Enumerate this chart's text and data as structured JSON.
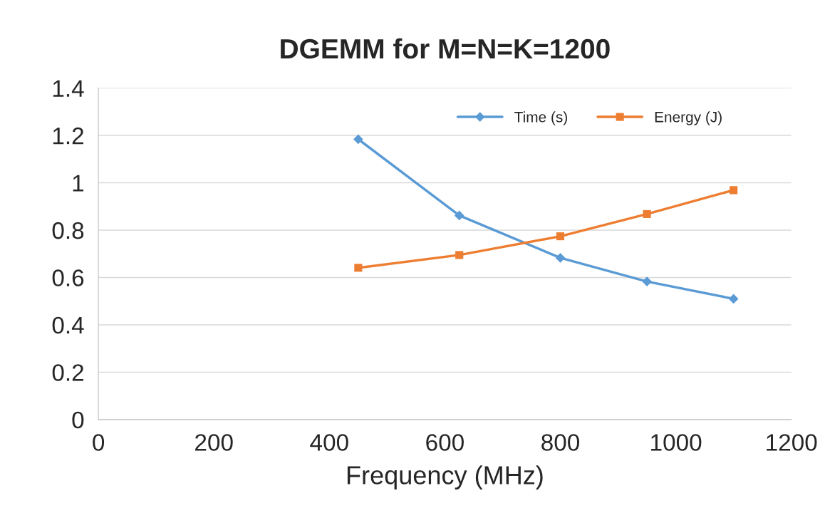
{
  "chart_data": {
    "type": "line",
    "title": "DGEMM for M=N=K=1200",
    "xlabel": "Frequency (MHz)",
    "x": [
      450,
      625,
      800,
      950,
      1100
    ],
    "series": [
      {
        "name": "Time (s)",
        "color": "#5b9bd5",
        "marker": "diamond",
        "values": [
          1.184,
          0.862,
          0.683,
          0.583,
          0.51
        ]
      },
      {
        "name": "Energy (J)",
        "color": "#ed7d31",
        "marker": "square",
        "values": [
          0.641,
          0.695,
          0.774,
          0.868,
          0.969
        ]
      }
    ],
    "xlim": [
      0,
      1200
    ],
    "xticks": [
      0,
      200,
      400,
      600,
      800,
      1000,
      1200
    ],
    "ylim": [
      0,
      1.4
    ],
    "yticks": [
      0,
      0.2,
      0.4,
      0.6,
      0.8,
      1,
      1.2,
      1.4
    ],
    "grid": "y",
    "legend": "top right",
    "line_style": "solid"
  }
}
